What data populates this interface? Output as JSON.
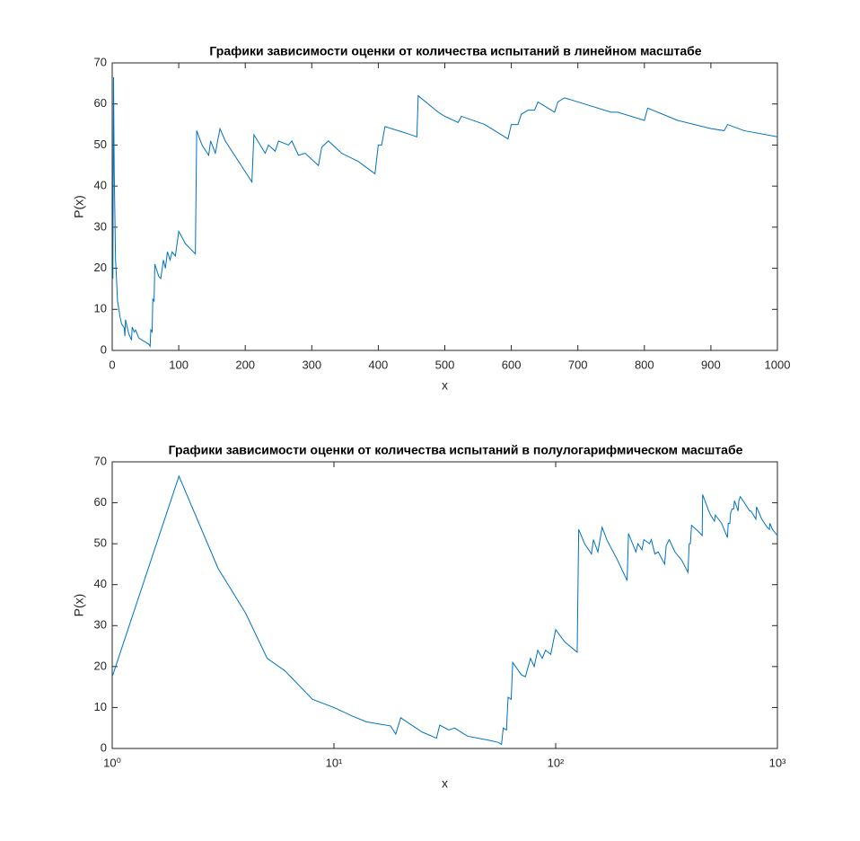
{
  "chart_data": [
    {
      "type": "line",
      "title": "Графики зависимости оценки от количества испытаний в линейном масштабе",
      "xlabel": "x",
      "ylabel": "P(x)",
      "xscale": "linear",
      "xlim": [
        0,
        1000
      ],
      "ylim": [
        0,
        70
      ],
      "xticks": [
        0,
        100,
        200,
        300,
        400,
        500,
        600,
        700,
        800,
        900,
        1000
      ],
      "yticks": [
        0,
        10,
        20,
        30,
        40,
        50,
        60,
        70
      ],
      "color": "#0072bd",
      "x": [
        1,
        2,
        3,
        4,
        5,
        6,
        8,
        10,
        12,
        14,
        18,
        19,
        20,
        22,
        25,
        29,
        30,
        33,
        35,
        40,
        50,
        55,
        57,
        58,
        60,
        61,
        63,
        64,
        70,
        73,
        77,
        80,
        83,
        87,
        90,
        95,
        100,
        110,
        125,
        127,
        135,
        145,
        148,
        155,
        162,
        170,
        190,
        210,
        213,
        230,
        235,
        245,
        250,
        265,
        270,
        280,
        290,
        310,
        315,
        325,
        345,
        370,
        395,
        400,
        405,
        410,
        440,
        458,
        460,
        490,
        500,
        520,
        525,
        560,
        595,
        600,
        610,
        615,
        625,
        635,
        640,
        655,
        665,
        670,
        680,
        700,
        750,
        760,
        800,
        805,
        850,
        900,
        920,
        925,
        950,
        1000
      ],
      "values": [
        17.5,
        66.5,
        44,
        33,
        22,
        19,
        12,
        10,
        8,
        6.5,
        5.5,
        3.5,
        7.5,
        6,
        4,
        2.5,
        5.7,
        4.5,
        5,
        3,
        2,
        1.5,
        1,
        5,
        4.5,
        12.5,
        12,
        21,
        18,
        17.5,
        22,
        20,
        24,
        22,
        24,
        23,
        29,
        26,
        23.5,
        53.5,
        50,
        47.5,
        51,
        48,
        54,
        51,
        46,
        41,
        52.5,
        48,
        50,
        48.5,
        51,
        50,
        51,
        47.5,
        48,
        45,
        49.5,
        51,
        48,
        46,
        43,
        50,
        50,
        54.5,
        53,
        52,
        62,
        58,
        57,
        55.5,
        57,
        55,
        51.5,
        55,
        55,
        57.5,
        58.5,
        58.5,
        60.5,
        59,
        58,
        60.5,
        61.5,
        60.5,
        58,
        58,
        56,
        59,
        56,
        54,
        53.5,
        55,
        53.5,
        52
      ]
    },
    {
      "type": "line",
      "title": "Графики зависимости оценки от количества испытаний в полулогарифмическом масштабе",
      "xlabel": "x",
      "ylabel": "P(x)",
      "xscale": "log",
      "xlim": [
        1,
        1000
      ],
      "ylim": [
        0,
        70
      ],
      "xticks": [
        {
          "value": 1,
          "label": "10⁰"
        },
        {
          "value": 10,
          "label": "10¹"
        },
        {
          "value": 100,
          "label": "10²"
        },
        {
          "value": 1000,
          "label": "10³"
        }
      ],
      "yticks": [
        0,
        10,
        20,
        30,
        40,
        50,
        60,
        70
      ],
      "color": "#0072bd",
      "x": [
        1,
        2,
        3,
        4,
        5,
        6,
        8,
        10,
        12,
        14,
        18,
        19,
        20,
        22,
        25,
        29,
        30,
        33,
        35,
        40,
        50,
        55,
        57,
        58,
        60,
        61,
        63,
        64,
        70,
        73,
        77,
        80,
        83,
        87,
        90,
        95,
        100,
        110,
        125,
        127,
        135,
        145,
        148,
        155,
        162,
        170,
        190,
        210,
        213,
        230,
        235,
        245,
        250,
        265,
        270,
        280,
        290,
        310,
        315,
        325,
        345,
        370,
        395,
        400,
        405,
        410,
        440,
        458,
        460,
        490,
        500,
        520,
        525,
        560,
        595,
        600,
        610,
        615,
        625,
        635,
        640,
        655,
        665,
        670,
        680,
        700,
        750,
        760,
        800,
        805,
        850,
        900,
        920,
        925,
        950,
        1000
      ],
      "values": [
        17.5,
        66.5,
        44,
        33,
        22,
        19,
        12,
        10,
        8,
        6.5,
        5.5,
        3.5,
        7.5,
        6,
        4,
        2.5,
        5.7,
        4.5,
        5,
        3,
        2,
        1.5,
        1,
        5,
        4.5,
        12.5,
        12,
        21,
        18,
        17.5,
        22,
        20,
        24,
        22,
        24,
        23,
        29,
        26,
        23.5,
        53.5,
        50,
        47.5,
        51,
        48,
        54,
        51,
        46,
        41,
        52.5,
        48,
        50,
        48.5,
        51,
        50,
        51,
        47.5,
        48,
        45,
        49.5,
        51,
        48,
        46,
        43,
        50,
        50,
        54.5,
        53,
        52,
        62,
        58,
        57,
        55.5,
        57,
        55,
        51.5,
        55,
        55,
        57.5,
        58.5,
        58.5,
        60.5,
        59,
        58,
        60.5,
        61.5,
        60.5,
        58,
        58,
        56,
        59,
        56,
        54,
        53.5,
        55,
        53.5,
        52
      ]
    }
  ]
}
